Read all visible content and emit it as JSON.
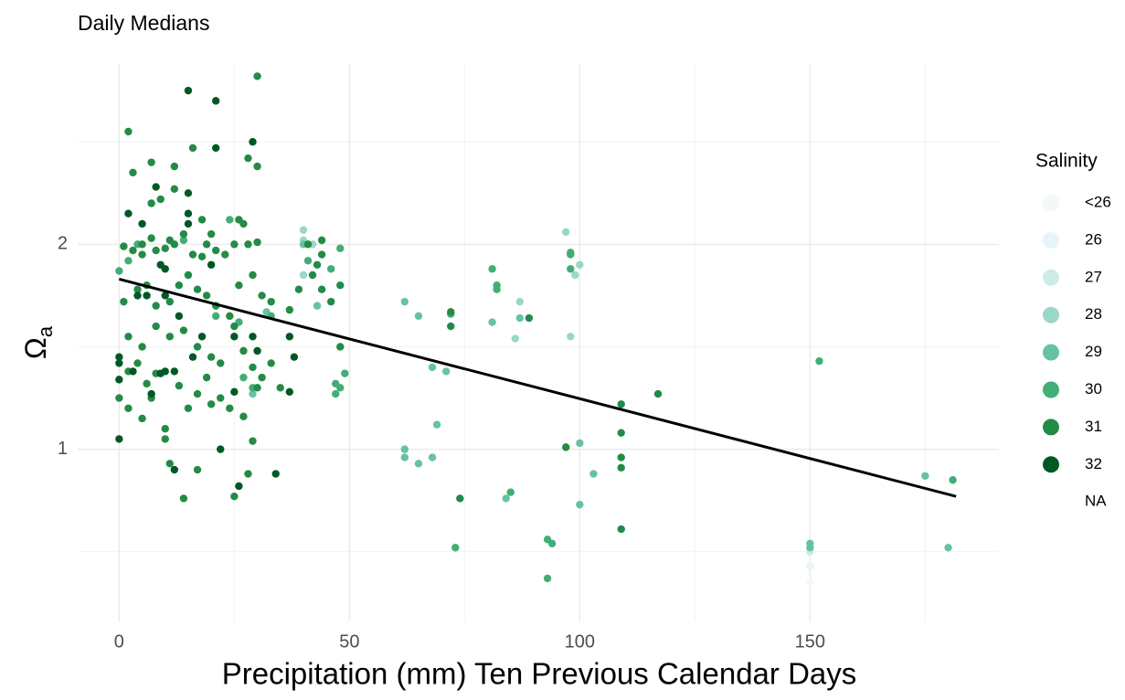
{
  "chart_data": {
    "type": "scatter",
    "title": "Daily Medians",
    "x_label": "Precipitation (mm) Ten Previous Calendar Days",
    "y_label": {
      "symbol": "Ω",
      "subscript": "a"
    },
    "legend_title": "Salinity",
    "xlim": [
      -9,
      191
    ],
    "ylim": [
      0.16,
      2.88
    ],
    "xticks": [
      0,
      50,
      100,
      150
    ],
    "yticks": [
      1,
      2
    ],
    "x_minor_grid": [
      25,
      75,
      125,
      175
    ],
    "y_minor_grid": [
      0.5,
      1.5,
      2.5
    ],
    "grid": true,
    "legend_position": "right",
    "series": [
      {
        "name": "<26",
        "color": "#f2faf8",
        "x": [
          150
        ],
        "y": [
          0.35
        ]
      },
      {
        "name": "26",
        "color": "#e5f5f9",
        "x": [
          150
        ],
        "y": [
          0.43
        ]
      },
      {
        "name": "27",
        "color": "#ccece6",
        "x": [
          150
        ],
        "y": [
          0.5
        ]
      },
      {
        "name": "28",
        "color": "#99d8c9",
        "x": [
          40,
          40,
          97,
          99,
          100,
          98,
          87,
          86,
          40,
          42
        ],
        "y": [
          2.07,
          2.02,
          2.06,
          1.85,
          1.9,
          1.55,
          1.72,
          1.54,
          1.85,
          2.0
        ]
      },
      {
        "name": "29",
        "color": "#66c2a4",
        "x": [
          62,
          65,
          68,
          71,
          69,
          62,
          62,
          65,
          68,
          84,
          81,
          87,
          100,
          103,
          100,
          150,
          150,
          175,
          180,
          29,
          32,
          40,
          43
        ],
        "y": [
          1.72,
          1.65,
          1.4,
          1.38,
          1.12,
          1.0,
          0.96,
          0.93,
          0.96,
          0.76,
          1.62,
          1.64,
          1.03,
          0.88,
          0.73,
          0.54,
          0.52,
          0.87,
          0.52,
          1.27,
          1.67,
          2.0,
          1.7
        ]
      },
      {
        "name": "30",
        "color": "#41ae76",
        "x": [
          2,
          0,
          4,
          24,
          14,
          21,
          26,
          33,
          41,
          46,
          48,
          47,
          47,
          49,
          48,
          72,
          81,
          82,
          82,
          98,
          98,
          98,
          152,
          181,
          85,
          73,
          94,
          93,
          93,
          29,
          27
        ],
        "y": [
          1.92,
          1.87,
          2.0,
          2.12,
          2.02,
          1.65,
          1.62,
          1.65,
          1.92,
          1.88,
          1.98,
          1.32,
          1.27,
          1.37,
          1.3,
          1.66,
          1.88,
          1.8,
          1.78,
          1.96,
          1.95,
          1.88,
          1.43,
          0.85,
          0.79,
          0.52,
          0.54,
          0.56,
          0.37,
          1.3,
          1.35
        ]
      },
      {
        "name": "31",
        "color": "#238b45",
        "x": [
          2,
          3,
          7,
          12,
          16,
          28,
          30,
          30,
          9,
          7,
          12,
          18,
          26,
          27,
          5,
          7,
          1,
          3,
          5,
          8,
          10,
          11,
          12,
          14,
          16,
          18,
          19,
          20,
          21,
          23,
          25,
          28,
          30,
          1,
          4,
          6,
          8,
          11,
          13,
          15,
          17,
          19,
          21,
          24,
          26,
          29,
          31,
          33,
          39,
          42,
          44,
          46,
          2,
          5,
          8,
          11,
          14,
          17,
          20,
          22,
          25,
          27,
          29,
          31,
          0,
          2,
          5,
          7,
          10,
          10,
          11,
          17,
          14,
          20,
          25,
          28,
          29,
          33,
          37,
          41,
          44,
          44,
          43,
          48,
          48,
          72,
          72,
          74,
          89,
          97,
          109,
          109,
          109,
          109,
          109,
          117,
          2,
          4,
          6,
          8,
          13,
          15,
          17,
          19,
          22,
          24,
          27,
          30,
          35
        ],
        "y": [
          2.55,
          2.35,
          2.4,
          2.38,
          2.47,
          2.42,
          2.38,
          2.82,
          2.22,
          2.2,
          2.27,
          2.12,
          2.12,
          2.1,
          2.0,
          2.03,
          1.99,
          1.97,
          1.95,
          1.97,
          1.98,
          2.02,
          2.0,
          2.05,
          1.95,
          1.94,
          2.0,
          2.05,
          1.97,
          1.95,
          2.0,
          2.0,
          2.01,
          1.72,
          1.78,
          1.8,
          1.7,
          1.72,
          1.8,
          1.85,
          1.78,
          1.75,
          1.7,
          1.65,
          1.8,
          1.85,
          1.75,
          1.72,
          1.78,
          1.85,
          1.78,
          1.72,
          1.55,
          1.5,
          1.6,
          1.55,
          1.58,
          1.5,
          1.45,
          1.42,
          1.6,
          1.48,
          1.4,
          1.35,
          1.25,
          1.2,
          1.15,
          1.25,
          1.1,
          1.05,
          0.93,
          0.9,
          0.76,
          1.22,
          0.77,
          0.88,
          1.04,
          1.42,
          1.68,
          2.0,
          2.02,
          1.95,
          1.9,
          1.8,
          1.5,
          1.67,
          1.6,
          0.76,
          1.64,
          1.01,
          1.22,
          1.08,
          0.96,
          0.91,
          0.61,
          1.27,
          1.38,
          1.42,
          1.32,
          1.37,
          1.31,
          1.2,
          1.27,
          1.35,
          1.25,
          1.2,
          1.16,
          1.3,
          1.3
        ]
      },
      {
        "name": "32",
        "color": "#005824",
        "x": [
          15,
          21,
          29,
          21,
          0,
          15,
          15,
          15,
          8,
          2,
          5,
          9,
          10,
          10,
          6,
          3,
          0,
          0,
          0,
          10,
          12,
          9,
          7,
          12,
          22,
          25,
          26,
          29,
          34,
          37,
          20,
          13,
          4,
          18,
          25,
          16,
          30,
          37,
          38
        ],
        "y": [
          2.75,
          2.7,
          2.5,
          2.47,
          1.05,
          2.25,
          2.15,
          2.1,
          2.28,
          2.15,
          2.1,
          1.9,
          1.88,
          1.75,
          1.75,
          1.38,
          1.45,
          1.42,
          1.34,
          1.38,
          1.38,
          1.37,
          1.27,
          0.9,
          1.0,
          1.28,
          0.82,
          1.55,
          0.88,
          1.28,
          1.9,
          1.65,
          1.75,
          1.55,
          1.55,
          1.45,
          1.48,
          1.55,
          1.45
        ]
      },
      {
        "name": "NA",
        "color": null,
        "x": [],
        "y": []
      }
    ],
    "trend": {
      "color": "#000000",
      "x": [
        0,
        181.7
      ],
      "y": [
        1.83,
        0.77
      ]
    }
  }
}
